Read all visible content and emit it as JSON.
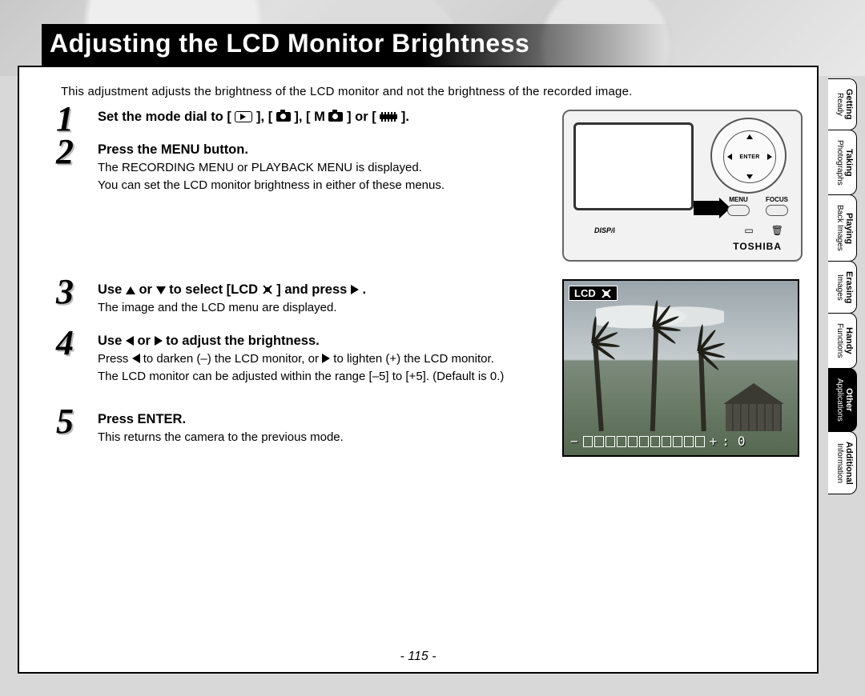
{
  "title": "Adjusting the LCD Monitor Brightness",
  "intro": "This adjustment adjusts the brightness of the LCD monitor and not the brightness of the recorded image.",
  "steps": {
    "s1": {
      "num": "1",
      "head_a": "Set the mode dial to [ ",
      "head_b": " ], [ ",
      "head_c": " ], [ M",
      "head_d": " ] or [ ",
      "head_e": " ]."
    },
    "s2": {
      "num": "2",
      "head": "Press the MENU button.",
      "body1": "The RECORDING MENU or PLAYBACK MENU is displayed.",
      "body2": "You can set the LCD monitor brightness in either of these menus."
    },
    "s3": {
      "num": "3",
      "head_a": "Use ",
      "head_b": " or ",
      "head_c": " to select [LCD ",
      "head_d": " ] and press ",
      "head_e": ".",
      "body": "The image and the LCD menu are displayed."
    },
    "s4": {
      "num": "4",
      "head_a": "Use ",
      "head_b": " or ",
      "head_c": " to adjust the brightness.",
      "body1a": "Press ",
      "body1b": " to darken (–) the LCD monitor, or ",
      "body1c": " to lighten (+) the LCD monitor.",
      "body2": "The LCD monitor can be adjusted within the range [–5] to [+5]. (Default is 0.)"
    },
    "s5": {
      "num": "5",
      "head": "Press ENTER.",
      "body": "This returns the camera to the previous mode."
    }
  },
  "camera": {
    "enter": "ENTER",
    "menu": "MENU",
    "focus": "FOCUS",
    "disp": "DISP/",
    "brand": "TOSHIBA"
  },
  "preview": {
    "badge": "LCD",
    "minus": "−",
    "plus": "+",
    "value_sep": ":",
    "value": "0",
    "segments": 11
  },
  "page_number": "- 115 -",
  "tabs": [
    {
      "l1": "Getting",
      "l2": "Ready",
      "active": false
    },
    {
      "l1": "Taking",
      "l2": "Photographs",
      "active": false
    },
    {
      "l1": "Playing",
      "l2": "Back Images",
      "active": false
    },
    {
      "l1": "Erasing",
      "l2": "Images",
      "active": false
    },
    {
      "l1": "Handy",
      "l2": "Functions",
      "active": false
    },
    {
      "l1": "Other",
      "l2": "Applications",
      "active": true
    },
    {
      "l1": "Additional",
      "l2": "Information",
      "active": false
    }
  ],
  "colors": {
    "page_bg": "#ffffff",
    "outer_bg": "#d8d8d8",
    "title_bg": "#000000",
    "title_fg": "#ffffff",
    "active_tab_bg": "#000000",
    "active_tab_fg": "#ffffff"
  }
}
